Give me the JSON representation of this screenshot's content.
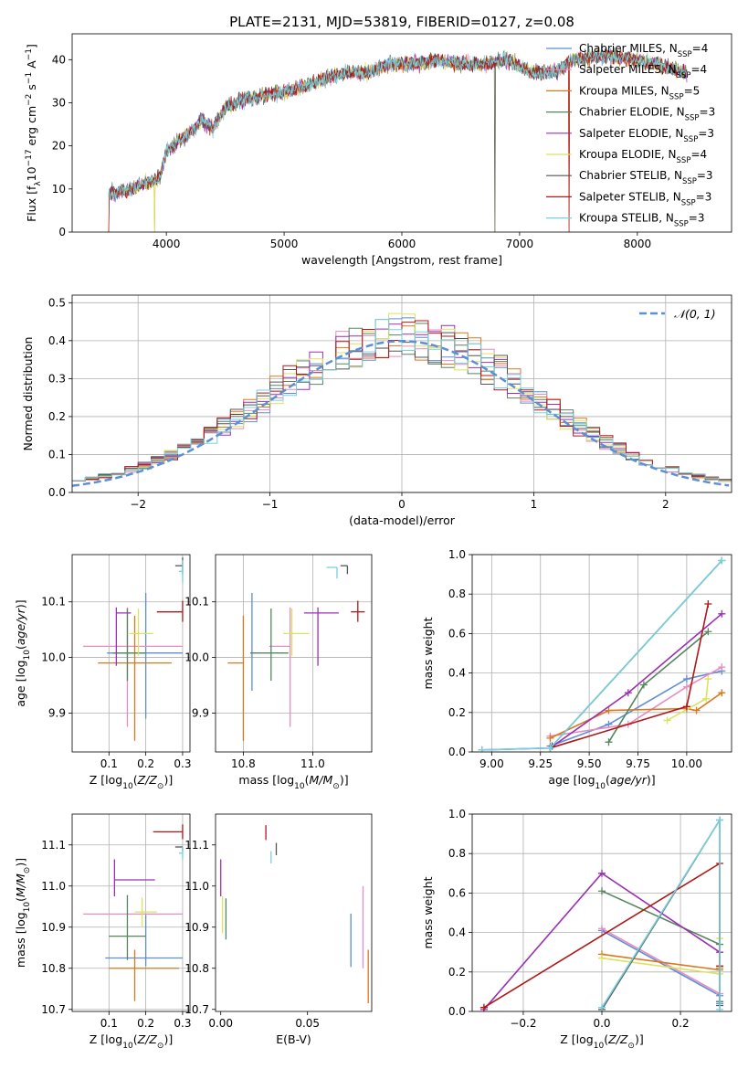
{
  "title": "PLATE=2131, MJD=53819, FIBERID=0127, z=0.08",
  "colors": {
    "Chabrier MILES": "#5f8dd3",
    "Salpeter MILES": "#e88cbf",
    "Kroupa MILES": "#d9781f",
    "Chabrier ELODIE": "#55865e",
    "Salpeter ELODIE": "#9b30b5",
    "Kroupa ELODIE": "#dbe25f",
    "Chabrier STELIB": "#555555",
    "Salpeter STELIB": "#b01818",
    "Kroupa STELIB": "#76d1de",
    "normal": "#5b8fd6"
  },
  "chart_data": [
    {
      "id": "spectrum",
      "type": "line",
      "xlabel": "wavelength [Angstrom, rest frame]",
      "ylabel": "Flux [fλ10⁻¹⁷ erg cm⁻² s⁻¹ A⁻¹]",
      "xlim": [
        3200,
        8800
      ],
      "ylim": [
        0,
        46
      ],
      "xticks": [
        "4000",
        "5000",
        "6000",
        "7000",
        "8000"
      ],
      "yticks": [
        "0",
        "10",
        "20",
        "30",
        "40"
      ],
      "grid": false,
      "legend_position": "upper right",
      "anchors": [
        [
          3510,
          9
        ],
        [
          3700,
          10
        ],
        [
          3800,
          11
        ],
        [
          3900,
          12
        ],
        [
          3950,
          13
        ],
        [
          4000,
          19
        ],
        [
          4100,
          21
        ],
        [
          4200,
          23
        ],
        [
          4300,
          26
        ],
        [
          4400,
          24
        ],
        [
          4500,
          29
        ],
        [
          4700,
          31
        ],
        [
          4900,
          32
        ],
        [
          5100,
          33
        ],
        [
          5300,
          35
        ],
        [
          5500,
          37
        ],
        [
          5700,
          37
        ],
        [
          5900,
          39
        ],
        [
          6100,
          39
        ],
        [
          6300,
          40
        ],
        [
          6500,
          39
        ],
        [
          6700,
          39
        ],
        [
          6900,
          40
        ],
        [
          7100,
          37
        ],
        [
          7300,
          37
        ],
        [
          7450,
          40
        ],
        [
          7700,
          41
        ],
        [
          8000,
          40
        ],
        [
          8300,
          38
        ],
        [
          8400,
          37
        ]
      ],
      "series": [
        {
          "name": "Chabrier MILES, N",
          "sub": "SSP",
          "suffix": "=4"
        },
        {
          "name": "Salpeter MILES, N",
          "sub": "SSP",
          "suffix": "=4"
        },
        {
          "name": "Kroupa MILES, N",
          "sub": "SSP",
          "suffix": "=5"
        },
        {
          "name": "Chabrier ELODIE, N",
          "sub": "SSP",
          "suffix": "=3"
        },
        {
          "name": "Salpeter ELODIE, N",
          "sub": "SSP",
          "suffix": "=3"
        },
        {
          "name": "Kroupa ELODIE, N",
          "sub": "SSP",
          "suffix": "=4"
        },
        {
          "name": "Chabrier STELIB, N",
          "sub": "SSP",
          "suffix": "=3"
        },
        {
          "name": "Salpeter STELIB, N",
          "sub": "SSP",
          "suffix": "=3"
        },
        {
          "name": "Kroupa STELIB, N",
          "sub": "SSP",
          "suffix": "=3"
        }
      ]
    },
    {
      "id": "residuals",
      "type": "histogram",
      "xlabel": "(data-model)/error",
      "ylabel": "Normed distribution",
      "xlim": [
        -2.5,
        2.5
      ],
      "ylim": [
        0,
        0.52
      ],
      "xticks": [
        "−2",
        "−1",
        "0",
        "1",
        "2"
      ],
      "yticks": [
        "0.0",
        "0.1",
        "0.2",
        "0.3",
        "0.4",
        "0.5"
      ],
      "grid": true,
      "legend": {
        "label": "𝒩(0, 1)",
        "position": "upper right"
      },
      "bin_width": 0.1
    },
    {
      "id": "z-vs-age",
      "type": "errorbar",
      "xlabel": "Z [log10(Z/Z⊙)]",
      "ylabel": "age [log10(age/yr)]",
      "xlim": [
        0.0,
        0.32
      ],
      "ylim": [
        9.83,
        10.185
      ],
      "xticks": [
        "0.1",
        "0.2",
        "0.3"
      ],
      "yticks": [
        "9.9",
        "10.0",
        "10.1"
      ],
      "grid": true,
      "points": [
        {
          "series": "Chabrier MILES",
          "x": 0.2,
          "y": 10.008,
          "xerr": [
            0.105,
            0.1
          ],
          "yerr": [
            0.118,
            0.108
          ]
        },
        {
          "series": "Salpeter MILES",
          "x": 0.15,
          "y": 10.02,
          "xerr": [
            0.12,
            0.15
          ],
          "yerr": [
            0.145,
            0.07
          ]
        },
        {
          "series": "Kroupa MILES",
          "x": 0.17,
          "y": 9.99,
          "xerr": [
            0.1,
            0.1
          ],
          "yerr": [
            0.14,
            0.085
          ]
        },
        {
          "series": "Chabrier ELODIE",
          "x": 0.15,
          "y": 10.008,
          "xerr": [
            0.04,
            0.05
          ],
          "yerr": [
            0.05,
            0.08
          ]
        },
        {
          "series": "Salpeter ELODIE",
          "x": 0.12,
          "y": 10.08,
          "xerr": [
            0.0,
            0.04
          ],
          "yerr": [
            0.095,
            0.01
          ]
        },
        {
          "series": "Kroupa ELODIE",
          "x": 0.18,
          "y": 10.043,
          "xerr": [
            0.025,
            0.04
          ],
          "yerr": [
            0.04,
            0.045
          ]
        },
        {
          "series": "Chabrier STELIB",
          "x": 0.3,
          "y": 10.165,
          "xerr": [
            0.02,
            0.0
          ],
          "yerr": [
            0.015,
            0.015
          ]
        },
        {
          "series": "Salpeter STELIB",
          "x": 0.3,
          "y": 10.082,
          "xerr": [
            0.07,
            0.0
          ],
          "yerr": [
            0.018,
            0.02
          ]
        },
        {
          "series": "Kroupa STELIB",
          "x": 0.3,
          "y": 10.155,
          "xerr": [
            0.01,
            0.0
          ],
          "yerr": [
            0.02,
            0.02
          ]
        }
      ]
    },
    {
      "id": "mass-vs-age",
      "type": "errorbar",
      "xlabel": "mass [log10(M/M⊙)]",
      "ylabel": "",
      "xlim": [
        10.72,
        11.17
      ],
      "ylim": [
        9.83,
        10.185
      ],
      "xticks": [
        "10.8",
        "11.0"
      ],
      "yticks": [
        "9.9",
        "10.0",
        "10.1"
      ],
      "grid": true,
      "points": [
        {
          "series": "Chabrier MILES",
          "x": 10.825,
          "y": 10.008,
          "xerr": [
            0.0,
            0.0
          ],
          "yerr": [
            0.068,
            0.108
          ]
        },
        {
          "series": "Salpeter MILES",
          "x": 10.935,
          "y": 10.02,
          "xerr": [
            0.06,
            0.0
          ],
          "yerr": [
            0.145,
            0.07
          ]
        },
        {
          "series": "Kroupa MILES",
          "x": 10.8,
          "y": 9.99,
          "xerr": [
            0.045,
            0.0
          ],
          "yerr": [
            0.14,
            0.085
          ]
        },
        {
          "series": "Chabrier ELODIE",
          "x": 10.88,
          "y": 10.008,
          "xerr": [
            0.06,
            0.05
          ],
          "yerr": [
            0.05,
            0.08
          ]
        },
        {
          "series": "Salpeter ELODIE",
          "x": 11.015,
          "y": 10.08,
          "xerr": [
            0.04,
            0.06
          ],
          "yerr": [
            0.095,
            0.01
          ]
        },
        {
          "series": "Kroupa ELODIE",
          "x": 10.94,
          "y": 10.043,
          "xerr": [
            0.025,
            0.05
          ],
          "yerr": [
            0.04,
            0.045
          ]
        },
        {
          "series": "Chabrier STELIB",
          "x": 11.1,
          "y": 10.165,
          "xerr": [
            0.02,
            0.0
          ],
          "yerr": [
            0.015,
            0.0
          ]
        },
        {
          "series": "Salpeter STELIB",
          "x": 11.13,
          "y": 10.082,
          "xerr": [
            0.02,
            0.02
          ],
          "yerr": [
            0.018,
            0.02
          ]
        },
        {
          "series": "Kroupa STELIB",
          "x": 11.07,
          "y": 10.162,
          "xerr": [
            0.03,
            0.0
          ],
          "yerr": [
            0.02,
            0.0
          ]
        }
      ]
    },
    {
      "id": "cumulative-age",
      "type": "line",
      "xlabel": "age [log10(age/yr)]",
      "ylabel": "mass weight",
      "xlim": [
        8.9,
        10.23
      ],
      "ylim": [
        0,
        1
      ],
      "xticks": [
        "9.00",
        "9.25",
        "9.50",
        "9.75",
        "10.00"
      ],
      "yticks": [
        "0.0",
        "0.2",
        "0.4",
        "0.6",
        "0.8",
        "1.0"
      ],
      "grid": true,
      "series": [
        {
          "name": "Chabrier MILES",
          "x": [
            9.3,
            9.6,
            10.0,
            10.18
          ],
          "y": [
            0.03,
            0.14,
            0.37,
            0.41
          ]
        },
        {
          "name": "Salpeter MILES",
          "x": [
            9.3,
            9.7,
            10.0,
            10.18
          ],
          "y": [
            0.08,
            0.14,
            0.33,
            0.43
          ]
        },
        {
          "name": "Kroupa MILES",
          "x": [
            9.3,
            9.6,
            10.0,
            10.05,
            10.18
          ],
          "y": [
            0.07,
            0.21,
            0.22,
            0.21,
            0.3
          ]
        },
        {
          "name": "Chabrier ELODIE",
          "x": [
            9.6,
            9.78,
            10.11
          ],
          "y": [
            0.05,
            0.34,
            0.61
          ]
        },
        {
          "name": "Salpeter ELODIE",
          "x": [
            8.95,
            9.3,
            9.7,
            10.18
          ],
          "y": [
            0.01,
            0.02,
            0.3,
            0.7
          ]
        },
        {
          "name": "Kroupa ELODIE",
          "x": [
            9.9,
            10.1,
            10.11
          ],
          "y": [
            0.16,
            0.27,
            0.37
          ]
        },
        {
          "name": "Chabrier STELIB",
          "x": [
            9.31,
            10.18
          ],
          "y": [
            0.03,
            0.97
          ]
        },
        {
          "name": "Salpeter STELIB",
          "x": [
            9.3,
            10.0,
            10.11
          ],
          "y": [
            0.02,
            0.23,
            0.75
          ]
        },
        {
          "name": "Kroupa STELIB",
          "x": [
            8.95,
            9.3,
            10.18
          ],
          "y": [
            0.01,
            0.02,
            0.97
          ]
        }
      ]
    },
    {
      "id": "z-vs-mass",
      "type": "errorbar",
      "xlabel": "Z [log10(Z/Z⊙)]",
      "ylabel": "mass [log10(M/M⊙)]",
      "xlim": [
        0.0,
        0.32
      ],
      "ylim": [
        10.695,
        11.175
      ],
      "xticks": [
        "0.1",
        "0.2",
        "0.3"
      ],
      "yticks": [
        "10.7",
        "10.8",
        "10.9",
        "11.0",
        "11.1"
      ],
      "grid": true,
      "points": [
        {
          "series": "Chabrier MILES",
          "x": 0.2,
          "y": 10.825,
          "xerr": [
            0.11,
            0.1
          ],
          "yerr": [
            0.02,
            0.105
          ]
        },
        {
          "series": "Salpeter MILES",
          "x": 0.15,
          "y": 10.932,
          "xerr": [
            0.12,
            0.15
          ],
          "yerr": [
            0.0,
            0.0
          ]
        },
        {
          "series": "Kroupa MILES",
          "x": 0.17,
          "y": 10.8,
          "xerr": [
            0.07,
            0.12
          ],
          "yerr": [
            0.08,
            0.045
          ]
        },
        {
          "series": "Chabrier ELODIE",
          "x": 0.15,
          "y": 10.878,
          "xerr": [
            0.05,
            0.05
          ],
          "yerr": [
            0.058,
            0.1
          ]
        },
        {
          "series": "Salpeter ELODIE",
          "x": 0.115,
          "y": 11.015,
          "xerr": [
            0.0,
            0.11
          ],
          "yerr": [
            0.04,
            0.05
          ]
        },
        {
          "series": "Kroupa ELODIE",
          "x": 0.19,
          "y": 10.937,
          "xerr": [
            0.02,
            0.04
          ],
          "yerr": [
            0.035,
            0.035
          ]
        },
        {
          "series": "Chabrier STELIB",
          "x": 0.3,
          "y": 11.095,
          "xerr": [
            0.02,
            0.0
          ],
          "yerr": [
            0.01,
            0.0
          ]
        },
        {
          "series": "Salpeter STELIB",
          "x": 0.3,
          "y": 11.132,
          "xerr": [
            0.08,
            0.0
          ],
          "yerr": [
            0.018,
            0.018
          ]
        },
        {
          "series": "Kroupa STELIB",
          "x": 0.3,
          "y": 11.08,
          "xerr": [
            0.01,
            0.0
          ],
          "yerr": [
            0.015,
            0.015
          ]
        }
      ]
    },
    {
      "id": "ebv-vs-mass",
      "type": "errorbar",
      "xlabel": "E(B-V)",
      "ylabel": "",
      "xlim": [
        -0.003,
        0.087
      ],
      "ylim": [
        10.695,
        11.175
      ],
      "xticks": [
        "0.00",
        "0.05"
      ],
      "yticks": [
        "10.7",
        "10.8",
        "10.9",
        "11.0",
        "11.1"
      ],
      "grid": false,
      "points": [
        {
          "series": "Chabrier MILES",
          "x": 0.075,
          "y": 10.868,
          "xerr": [
            0,
            0
          ],
          "yerr": [
            0.065,
            0.065
          ]
        },
        {
          "series": "Salpeter MILES",
          "x": 0.082,
          "y": 10.9,
          "xerr": [
            0,
            0
          ],
          "yerr": [
            0.1,
            0.1
          ]
        },
        {
          "series": "Kroupa MILES",
          "x": 0.085,
          "y": 10.78,
          "xerr": [
            0,
            0
          ],
          "yerr": [
            0.065,
            0.065
          ]
        },
        {
          "series": "Chabrier ELODIE",
          "x": 0.003,
          "y": 10.92,
          "xerr": [
            0,
            0
          ],
          "yerr": [
            0.05,
            0.05
          ]
        },
        {
          "series": "Salpeter ELODIE",
          "x": 0.0,
          "y": 11.02,
          "xerr": [
            0,
            0
          ],
          "yerr": [
            0.045,
            0.045
          ]
        },
        {
          "series": "Kroupa ELODIE",
          "x": 0.001,
          "y": 10.93,
          "xerr": [
            0,
            0
          ],
          "yerr": [
            0.045,
            0.045
          ]
        },
        {
          "series": "Chabrier STELIB",
          "x": 0.032,
          "y": 11.09,
          "xerr": [
            0,
            0
          ],
          "yerr": [
            0.015,
            0.015
          ]
        },
        {
          "series": "Salpeter STELIB",
          "x": 0.026,
          "y": 11.13,
          "xerr": [
            0,
            0
          ],
          "yerr": [
            0.018,
            0.018
          ]
        },
        {
          "series": "Kroupa STELIB",
          "x": 0.029,
          "y": 11.07,
          "xerr": [
            0,
            0
          ],
          "yerr": [
            0.015,
            0.015
          ]
        }
      ]
    },
    {
      "id": "cumulative-z",
      "type": "line",
      "xlabel": "Z [log10(Z/Z⊙)]",
      "ylabel": "mass weight",
      "xlim": [
        -0.33,
        0.33
      ],
      "ylim": [
        0,
        1
      ],
      "xticks": [
        "−0.2",
        "0.0",
        "0.2"
      ],
      "yticks": [
        "0.0",
        "0.2",
        "0.4",
        "0.6",
        "0.8",
        "1.0"
      ],
      "grid": true,
      "series": [
        {
          "name": "Chabrier MILES",
          "x": [
            0.0,
            0.3,
            0.3
          ],
          "y": [
            0.41,
            0.08,
            0.04
          ]
        },
        {
          "name": "Salpeter MILES",
          "x": [
            0.0,
            0.3,
            0.3
          ],
          "y": [
            0.42,
            0.09,
            0.05
          ]
        },
        {
          "name": "Kroupa MILES",
          "x": [
            0.0,
            0.3,
            0.3
          ],
          "y": [
            0.29,
            0.21,
            0.22
          ]
        },
        {
          "name": "Chabrier ELODIE",
          "x": [
            0.0,
            0.3,
            0.3
          ],
          "y": [
            0.61,
            0.34,
            0.05
          ]
        },
        {
          "name": "Salpeter ELODIE",
          "x": [
            -0.3,
            0.0,
            0.3
          ],
          "y": [
            0.01,
            0.7,
            0.3
          ]
        },
        {
          "name": "Kroupa ELODIE",
          "x": [
            0.0,
            0.3,
            0.3
          ],
          "y": [
            0.27,
            0.19,
            0.37
          ]
        },
        {
          "name": "Chabrier STELIB",
          "x": [
            0.0,
            0.3,
            0.3
          ],
          "y": [
            0.01,
            0.97,
            0.03
          ]
        },
        {
          "name": "Salpeter STELIB",
          "x": [
            -0.3,
            0.3,
            0.3
          ],
          "y": [
            0.02,
            0.75,
            0.23
          ]
        },
        {
          "name": "Kroupa STELIB",
          "x": [
            0.0,
            0.3,
            0.3
          ],
          "y": [
            0.02,
            0.97,
            0.01
          ]
        }
      ]
    }
  ]
}
